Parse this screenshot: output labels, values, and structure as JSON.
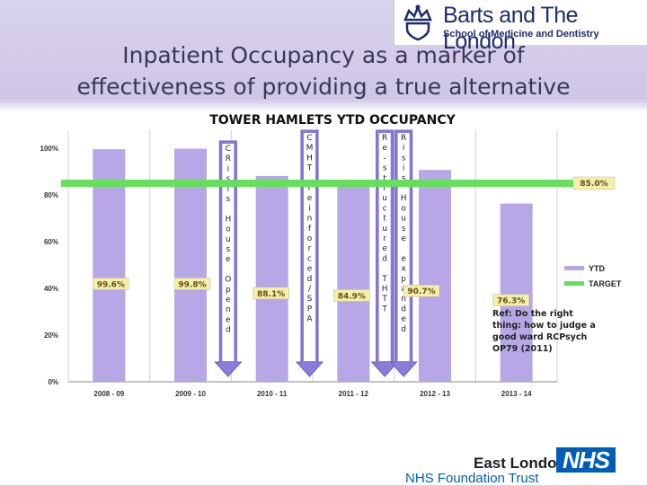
{
  "slide": {
    "title_line1": "Inpatient Occupancy as a marker of",
    "title_line2": "effectiveness of providing a true alternative"
  },
  "logos": {
    "barts_name": "Barts and The London",
    "barts_sub": "School of Medicine and Dentistry",
    "nhs_org": "East London",
    "nhs_badge": "NHS",
    "nhs_trust": "NHS Foundation Trust"
  },
  "colors": {
    "bar": "#b7a7e6",
    "target": "#66e05a",
    "arrow": "#8c7bd9",
    "label_box": "#f3f0a8",
    "label_text": "#6b4a1c"
  },
  "chart_data": {
    "type": "bar",
    "title": "TOWER HAMLETS YTD OCCUPANCY",
    "categories": [
      "2008 - 09",
      "2009 - 10",
      "2010 - 11",
      "2011 - 12",
      "2012 - 13",
      "2013 - 14"
    ],
    "series": [
      {
        "name": "YTD",
        "values": [
          99.6,
          99.8,
          88.1,
          84.9,
          90.7,
          76.3
        ]
      },
      {
        "name": "TARGET",
        "values": [
          85.0,
          85.0,
          85.0,
          85.0,
          85.0,
          85.0
        ]
      }
    ],
    "data_labels": [
      "99.6%",
      "99.8%",
      "88.1%",
      "84.9%",
      "90.7%",
      "76.3%"
    ],
    "target_label": "85.0%",
    "yticks": [
      "0%",
      "20%",
      "40%",
      "60%",
      "80%",
      "100%"
    ],
    "ylim": [
      0,
      100
    ],
    "grid": false,
    "legend_position": "right",
    "annotations": [
      {
        "text": "CRisis House Opened",
        "between": [
          "2009 - 10",
          "2010 - 11"
        ]
      },
      {
        "text": "CMHT reinforced/SPA",
        "between": [
          "2010 - 11",
          "2011 - 12"
        ]
      },
      {
        "text": "Re-structured THTT",
        "between": [
          "2011 - 12",
          "2012 - 13"
        ]
      },
      {
        "text": "Risis House expanded",
        "between": [
          "2011 - 12",
          "2012 - 13"
        ]
      }
    ],
    "ref_note": "Ref: Do the right thing: how to judge a good ward RCPsych OP79 (2011)"
  }
}
